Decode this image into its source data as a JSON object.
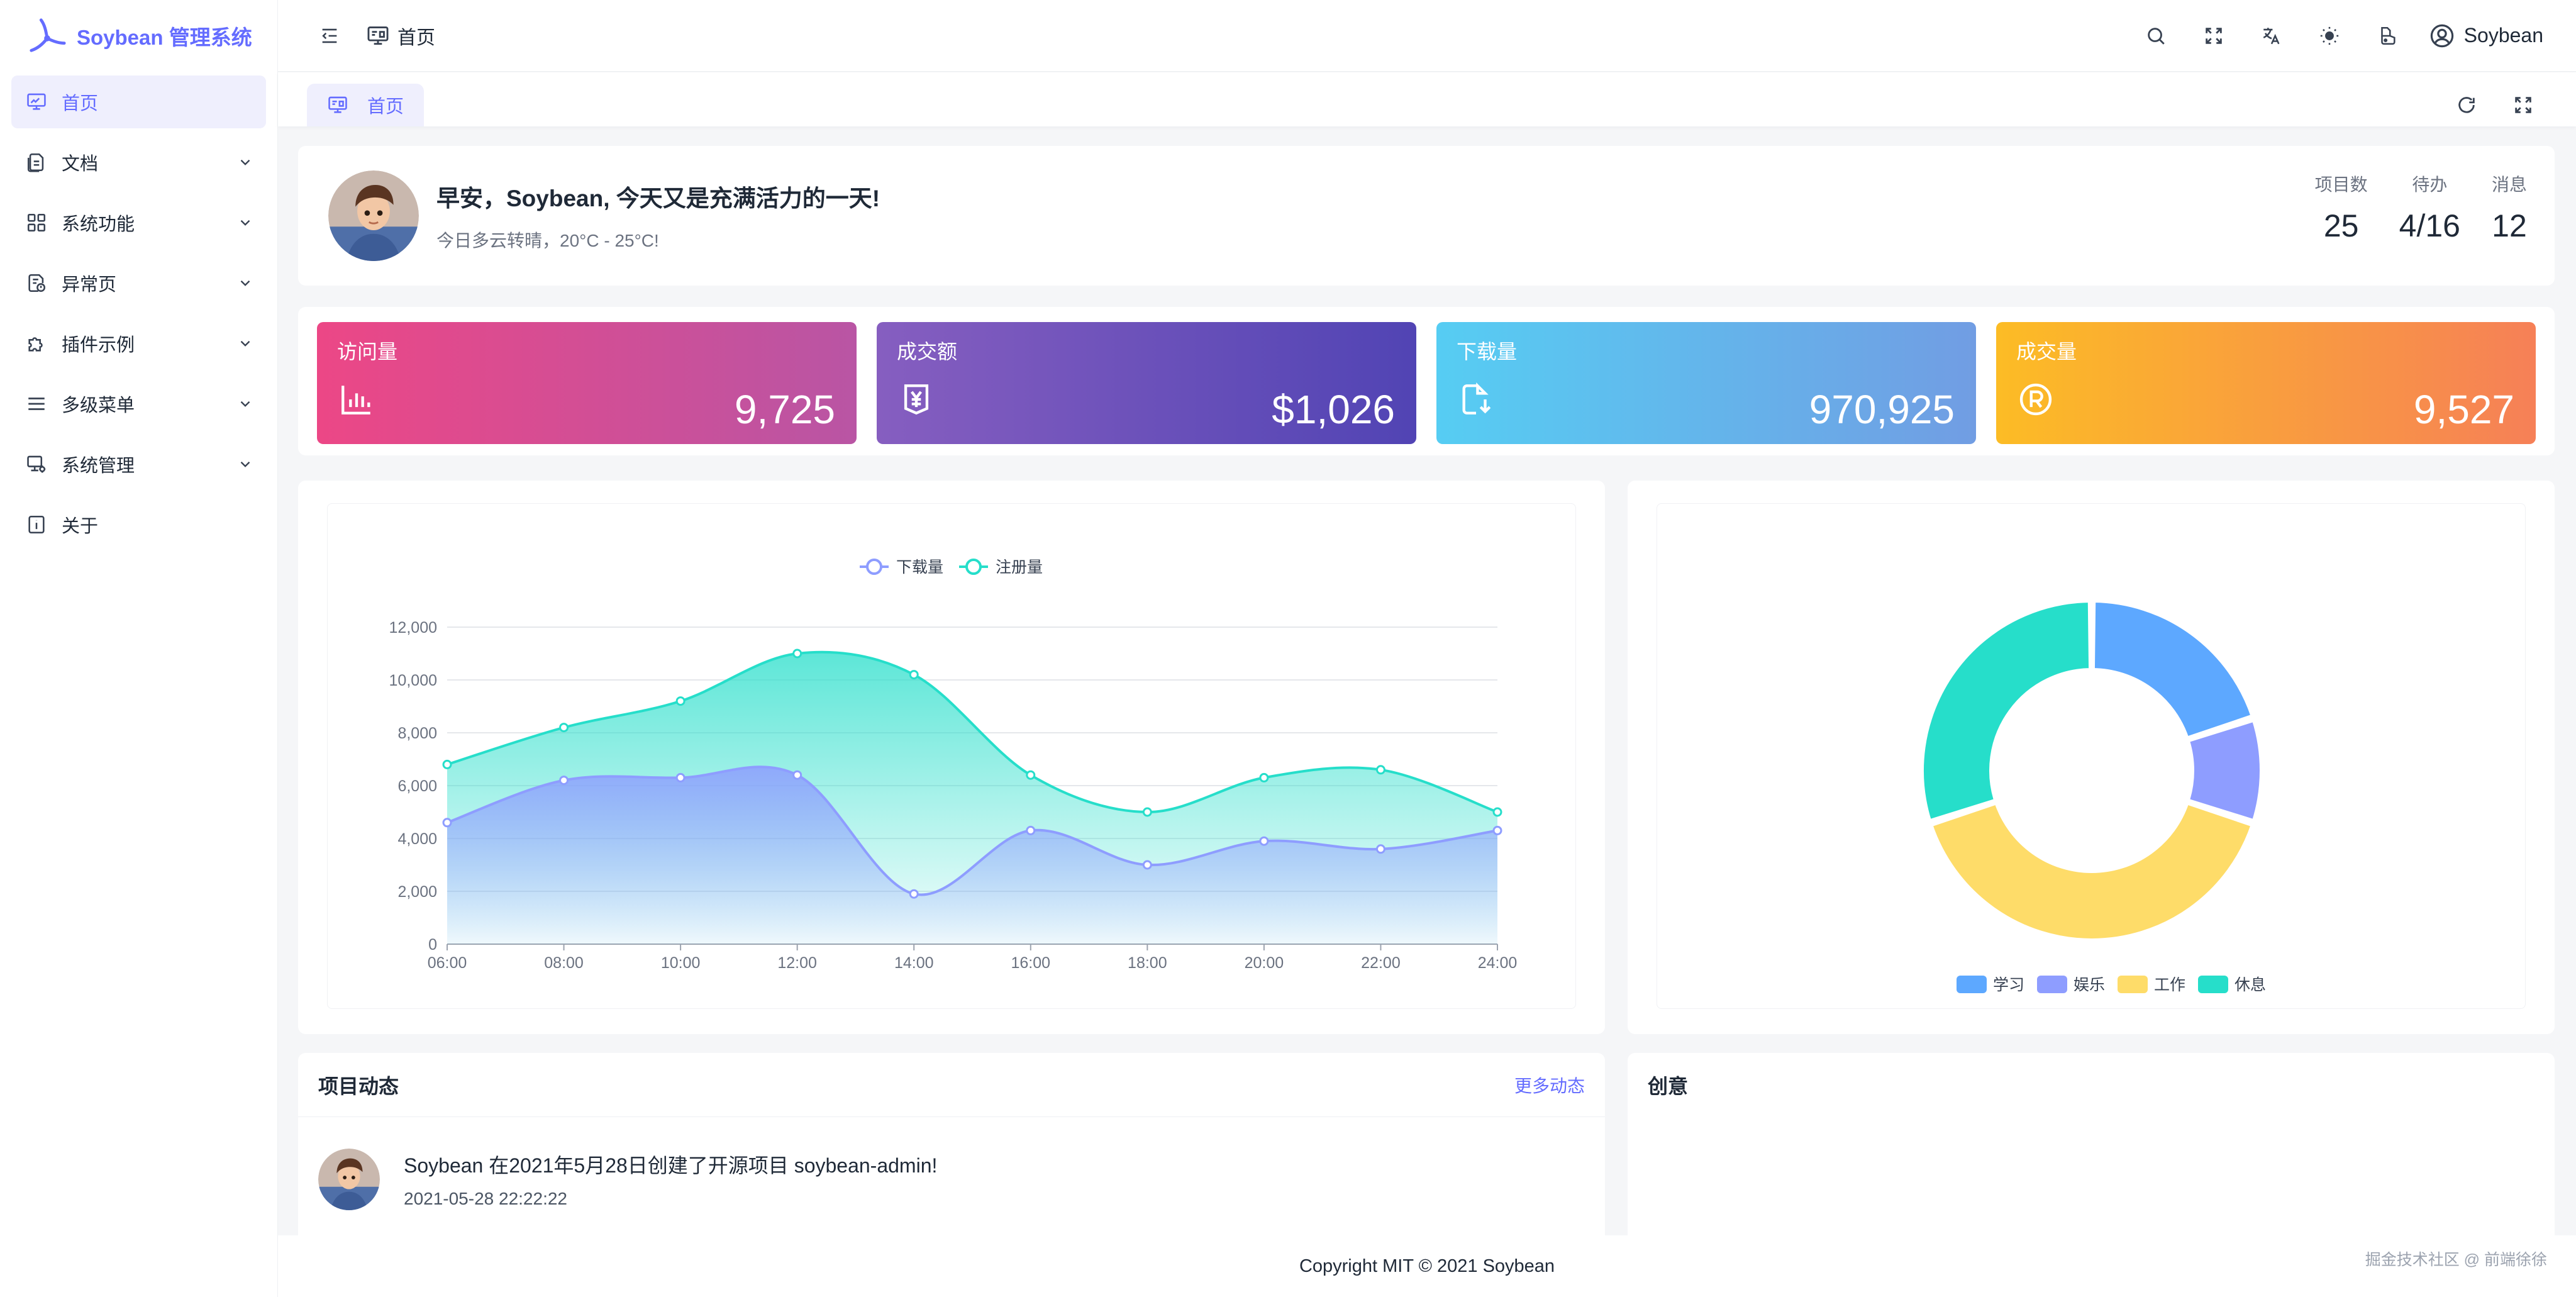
{
  "app": {
    "title": "Soybean 管理系统",
    "brand_color": "#646cff"
  },
  "sidebar": {
    "items": [
      {
        "label": "首页",
        "icon": "monitor-dashboard-icon",
        "active": true,
        "expandable": false
      },
      {
        "label": "文档",
        "icon": "document-icon",
        "active": false,
        "expandable": true
      },
      {
        "label": "系统功能",
        "icon": "grid-apps-icon",
        "active": false,
        "expandable": true
      },
      {
        "label": "异常页",
        "icon": "exception-icon",
        "active": false,
        "expandable": true
      },
      {
        "label": "插件示例",
        "icon": "plugin-icon",
        "active": false,
        "expandable": true
      },
      {
        "label": "多级菜单",
        "icon": "menu-lines-icon",
        "active": false,
        "expandable": true
      },
      {
        "label": "系统管理",
        "icon": "system-manage-icon",
        "active": false,
        "expandable": true
      },
      {
        "label": "关于",
        "icon": "info-icon",
        "active": false,
        "expandable": false
      }
    ]
  },
  "header": {
    "breadcrumb": "首页",
    "user_name": "Soybean",
    "icons": [
      "menu-fold-icon",
      "search-icon",
      "fullscreen-icon",
      "translate-icon",
      "sun-icon",
      "theme-icon",
      "user-circle-icon"
    ]
  },
  "tabs": {
    "items": [
      {
        "label": "首页",
        "active": true
      }
    ],
    "actions": [
      "refresh-icon",
      "fullscreen-icon"
    ]
  },
  "welcome": {
    "greeting": "早安，Soybean, 今天又是充满活力的一天!",
    "weather": "今日多云转晴，20°C - 25°C!",
    "stats": [
      {
        "label": "项目数",
        "value": "25"
      },
      {
        "label": "待办",
        "value": "4/16"
      },
      {
        "label": "消息",
        "value": "12"
      }
    ]
  },
  "kpis": [
    {
      "title": "访问量",
      "value": "9,725",
      "icon": "bar-chart-icon",
      "colors": [
        "#ec4786",
        "#b955a4"
      ]
    },
    {
      "title": "成交额",
      "value": "$1,026",
      "icon": "money-icon",
      "colors": [
        "#865ec0",
        "#5144b4"
      ]
    },
    {
      "title": "下载量",
      "value": "970,925",
      "icon": "download-file-icon",
      "colors": [
        "#56cdf3",
        "#719de3"
      ]
    },
    {
      "title": "成交量",
      "value": "9,527",
      "icon": "registered-icon",
      "colors": [
        "#fcbc25",
        "#f68057"
      ]
    }
  ],
  "chart_data": [
    {
      "type": "area",
      "title": "",
      "xlabel": "",
      "ylabel": "",
      "x": [
        "06:00",
        "08:00",
        "10:00",
        "12:00",
        "14:00",
        "16:00",
        "18:00",
        "20:00",
        "22:00",
        "24:00"
      ],
      "ylim": [
        0,
        12000
      ],
      "yticks": [
        0,
        2000,
        4000,
        6000,
        8000,
        10000,
        12000
      ],
      "ytick_labels": [
        "0",
        "2,000",
        "4,000",
        "6,000",
        "8,000",
        "10,000",
        "12,000"
      ],
      "grid": true,
      "legend_position": "top-center",
      "series": [
        {
          "name": "下载量",
          "color": "#8e9dff",
          "values": [
            4600,
            6200,
            6300,
            6400,
            1900,
            4300,
            3000,
            3900,
            3600,
            4300
          ]
        },
        {
          "name": "注册量",
          "color": "#26deca",
          "values": [
            6800,
            8200,
            9200,
            11000,
            10200,
            6400,
            5000,
            6300,
            6600,
            5000
          ]
        }
      ]
    },
    {
      "type": "pie",
      "title": "",
      "donut": true,
      "legend_position": "bottom-center",
      "categories": [
        "学习",
        "娱乐",
        "工作",
        "休息"
      ],
      "values": [
        20,
        10,
        40,
        30
      ],
      "colors": [
        "#5da8ff",
        "#8e9dff",
        "#fedc69",
        "#26deca"
      ]
    }
  ],
  "activity": {
    "title": "项目动态",
    "more": "更多动态",
    "items": [
      {
        "text": "Soybean 在2021年5月28日创建了开源项目 soybean-admin!",
        "time": "2021-05-28 22:22:22"
      }
    ]
  },
  "creativity": {
    "title": "创意"
  },
  "footer": {
    "copyright": "Copyright MIT © 2021 Soybean"
  },
  "watermark": "掘金技术社区 @ 前端徐徐"
}
